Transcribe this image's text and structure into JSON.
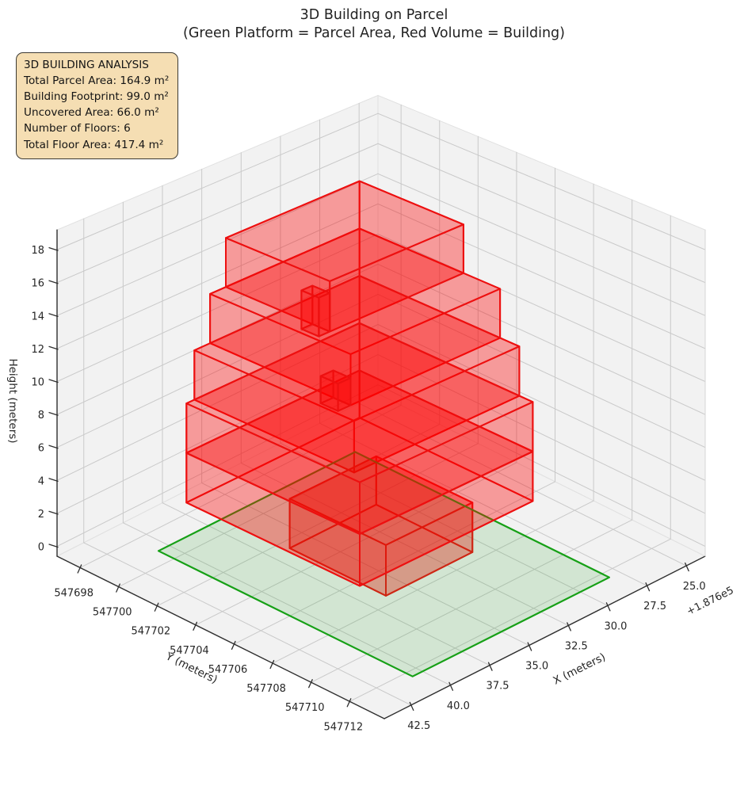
{
  "title": {
    "line1": "3D Building on Parcel",
    "line2": "(Green Platform = Parcel Area, Red Volume = Building)"
  },
  "info_box": {
    "title": "3D BUILDING ANALYSIS",
    "lines": [
      "Total Parcel Area: 164.9 m²",
      "Building Footprint: 99.0 m²",
      "Uncovered Area: 66.0 m²",
      "Number of Floors: 6",
      "Total Floor Area: 417.4 m²"
    ],
    "bg_color": "#f5deb3",
    "border_color": "#3c3a33"
  },
  "chart_data": {
    "type": "3d-building-plot",
    "title": "3D Building on Parcel (Green Platform = Parcel Area, Red Volume = Building)",
    "x_axis": {
      "label": "X (meters)",
      "ticks": [
        25.0,
        27.5,
        30.0,
        32.5,
        35.0,
        37.5,
        40.0,
        42.5
      ],
      "offset_text": "+1.876e5",
      "lim": [
        23.8,
        44.2
      ]
    },
    "y_axis": {
      "label": "Y (meters)",
      "ticks": [
        547698,
        547700,
        547702,
        547704,
        547706,
        547708,
        547710,
        547712
      ],
      "lim": [
        547696.8,
        547713.8
      ]
    },
    "z_axis": {
      "label": "Height (meters)",
      "ticks": [
        0,
        2,
        4,
        6,
        8,
        10,
        12,
        14,
        16,
        18
      ],
      "lim": [
        -0.6,
        19.2
      ]
    },
    "stats": {
      "total_parcel_area_m2": 164.9,
      "building_footprint_m2": 99.0,
      "uncovered_area_m2": 66.0,
      "number_of_floors": 6,
      "total_floor_area_m2": 417.4
    },
    "parcel": {
      "x": [
        28.8,
        41.3
      ],
      "y": [
        547699.7,
        547712.9
      ],
      "z": 0,
      "face_color": "rgba(44,160,44,0.16)",
      "edge_color": "#16a016"
    },
    "building": {
      "face_color": "rgba(255,0,0,0.20)",
      "edge_color": "#ed1010",
      "boxes": [
        {
          "id": "floor1",
          "x": [
            31.5,
            37.0
          ],
          "y": [
            547703.0,
            547708.0
          ],
          "z": [
            0,
            3
          ]
        },
        {
          "id": "floor2",
          "x": [
            29.5,
            40.5
          ],
          "y": [
            547700.5,
            547709.5
          ],
          "z": [
            3,
            6
          ]
        },
        {
          "id": "floor3",
          "x": [
            29.5,
            40.5
          ],
          "y": [
            547700.5,
            547709.5
          ],
          "z": [
            6,
            9
          ]
        },
        {
          "id": "floor4",
          "x": [
            29.5,
            40.0
          ],
          "y": [
            547700.5,
            547708.8
          ],
          "z": [
            9,
            12
          ]
        },
        {
          "id": "fin_a",
          "x": [
            39.0,
            39.8
          ],
          "y": [
            547706.9,
            547707.8
          ],
          "z": [
            12,
            13.6
          ]
        },
        {
          "id": "floor5",
          "x": [
            29.5,
            39.0
          ],
          "y": [
            547700.5,
            547707.8
          ],
          "z": [
            12,
            15
          ]
        },
        {
          "id": "fin_b",
          "x": [
            38.0,
            38.7
          ],
          "y": [
            547705.0,
            547705.9
          ],
          "z": [
            15,
            17.3
          ]
        },
        {
          "id": "floor6",
          "x": [
            29.5,
            38.0
          ],
          "y": [
            547700.5,
            547705.9
          ],
          "z": [
            15,
            18
          ]
        }
      ]
    },
    "style": {
      "pane_color": "#f2f2f2",
      "pane_edge_color": "#e0e0e0",
      "grid_color": "#c9c9c9",
      "axis_line_color": "#2f2f2f",
      "tick_label_color": "#262626",
      "label_color": "#1a1a1a"
    }
  }
}
